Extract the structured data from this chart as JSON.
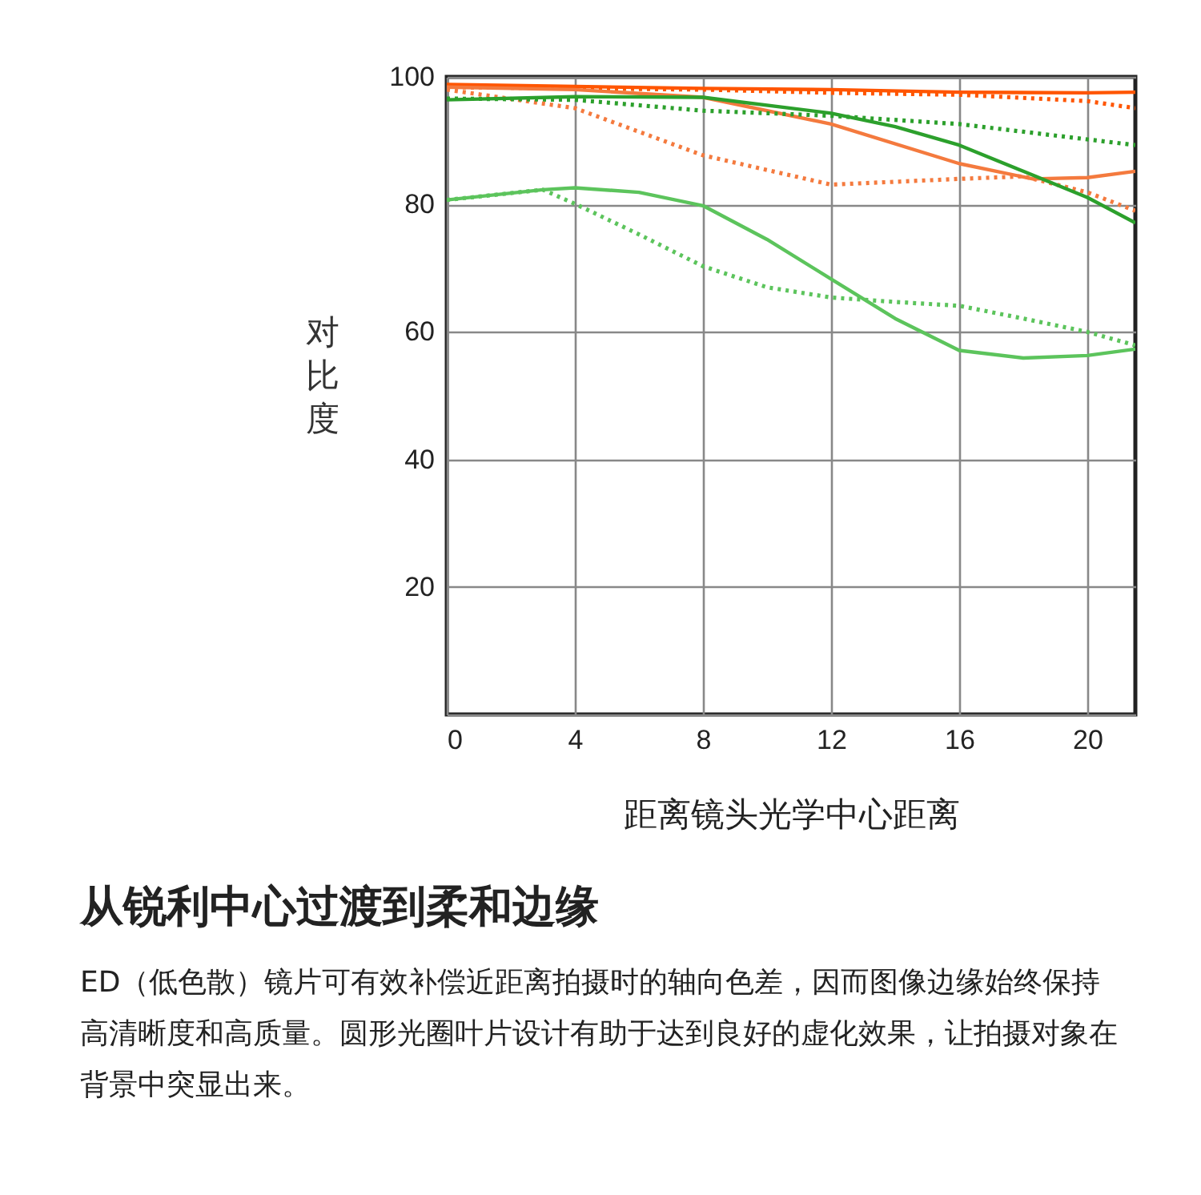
{
  "chart_data": {
    "type": "line",
    "xlabel": "距离镜头光学中心距离",
    "ylabel": "对比度",
    "xlim": [
      0,
      21.5
    ],
    "ylim": [
      0,
      100
    ],
    "xticks": [
      0,
      4,
      8,
      12,
      16,
      20
    ],
    "yticks": [
      {
        "value": 0,
        "label": null
      },
      20,
      40,
      60,
      80,
      100
    ],
    "grid": true,
    "series": [
      {
        "color": "#ff5500",
        "line_style": "solid",
        "x": [
          0,
          4,
          8,
          12,
          16,
          20,
          21.5
        ],
        "values": [
          98.8,
          98.5,
          98.2,
          98,
          97.6,
          97.5,
          97.6
        ]
      },
      {
        "color": "#ff5500",
        "line_style": "dotted",
        "x": [
          0,
          4,
          8,
          12,
          16,
          20,
          21.5
        ],
        "values": [
          98.4,
          98.2,
          98,
          97.5,
          97.2,
          96.2,
          95.1
        ]
      },
      {
        "color": "#f47a3e",
        "line_style": "solid",
        "x": [
          0,
          4,
          8,
          12,
          16,
          18.3,
          20,
          21.5
        ],
        "values": [
          98.4,
          98,
          96.8,
          92.6,
          86.4,
          84,
          84.2,
          85.2
        ]
      },
      {
        "color": "#f47a3e",
        "line_style": "dotted",
        "x": [
          0,
          4,
          8,
          12,
          16,
          18,
          20,
          21.5
        ],
        "values": [
          98,
          95.1,
          87.7,
          83.1,
          84,
          84.4,
          81.9,
          79
        ]
      },
      {
        "color": "#2ca02c",
        "line_style": "solid",
        "x": [
          0,
          4,
          8,
          12,
          14,
          16,
          18,
          20,
          21.5
        ],
        "values": [
          96.4,
          96.9,
          96.8,
          94.3,
          92.2,
          89.3,
          85.2,
          81.1,
          77.1
        ]
      },
      {
        "color": "#2ca02c",
        "line_style": "dotted",
        "x": [
          0,
          4,
          8,
          12,
          16,
          18,
          21.5
        ],
        "values": [
          96.6,
          96.4,
          94.7,
          93.9,
          92.6,
          91.4,
          89.3
        ]
      },
      {
        "color": "#5cc45c",
        "line_style": "solid",
        "x": [
          0,
          3,
          4,
          6,
          8,
          10,
          12,
          14,
          16,
          18,
          20,
          21.5
        ],
        "values": [
          80.7,
          82.3,
          82.6,
          81.9,
          79.8,
          74.5,
          68.3,
          62.1,
          57.1,
          55.9,
          56.3,
          57.3
        ]
      },
      {
        "color": "#5cc45c",
        "line_style": "dotted",
        "x": [
          0,
          3,
          4,
          6,
          8,
          10,
          12,
          14,
          16,
          18,
          20,
          21.5
        ],
        "values": [
          80.7,
          82.3,
          80.1,
          75.3,
          70.3,
          67,
          65.4,
          64.7,
          64.1,
          62.1,
          60,
          57.9
        ]
      }
    ],
    "annotations": [
      "从锐利中心过渡到柔和边缘",
      "ED（低色散）镜片可有效补偿近距离拍摄时的轴向色差，因而图像边缘始终保持高清晰度和高质量。圆形光圈叶片设计有助于达到良好的虚化效果，让拍摄对象在背景中突显出来。"
    ]
  }
}
